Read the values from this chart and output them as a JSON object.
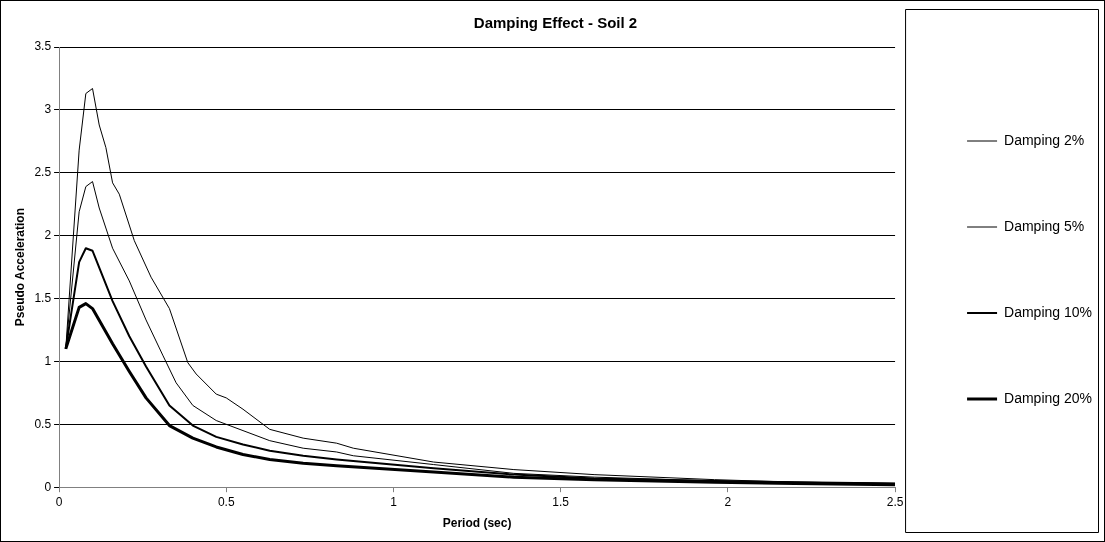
{
  "chart_data": {
    "type": "line",
    "title": "Damping Effect - Soil 2",
    "xlabel": "Period (sec)",
    "ylabel": "Pseudo Acceleration",
    "xlim": [
      0,
      2.5
    ],
    "xticks": [
      0,
      0.5,
      1,
      1.5,
      2,
      2.5
    ],
    "ylim": [
      0,
      3.5
    ],
    "yticks": [
      0,
      0.5,
      1,
      1.5,
      2,
      2.5,
      3,
      3.5
    ],
    "grid": "y",
    "legend": "right",
    "marker": "none",
    "line_style": "solid",
    "series": [
      {
        "name": "Damping 2%",
        "color": "#000000",
        "x": [
          0.02,
          0.06,
          0.08,
          0.1,
          0.12,
          0.14,
          0.16,
          0.18,
          0.225,
          0.275,
          0.33,
          0.385,
          0.41,
          0.47,
          0.5,
          0.55,
          0.63,
          0.73,
          0.83,
          0.88,
          1.12,
          1.36,
          1.6,
          1.96,
          2.2,
          2.5
        ],
        "values": [
          1.1,
          2.68,
          3.13,
          3.17,
          2.88,
          2.7,
          2.42,
          2.33,
          1.96,
          1.67,
          1.42,
          0.99,
          0.9,
          0.74,
          0.71,
          0.62,
          0.46,
          0.39,
          0.35,
          0.31,
          0.2,
          0.14,
          0.1,
          0.06,
          0.04,
          0.03
        ]
      },
      {
        "name": "Damping 5%",
        "color": "#000000",
        "x": [
          0.02,
          0.06,
          0.08,
          0.1,
          0.12,
          0.16,
          0.21,
          0.26,
          0.31,
          0.35,
          0.4,
          0.47,
          0.55,
          0.63,
          0.73,
          0.83,
          0.88,
          1.12,
          1.36,
          1.6,
          1.96,
          2.2,
          2.5
        ],
        "values": [
          1.1,
          2.19,
          2.39,
          2.43,
          2.22,
          1.9,
          1.64,
          1.33,
          1.05,
          0.83,
          0.65,
          0.53,
          0.45,
          0.37,
          0.31,
          0.28,
          0.25,
          0.18,
          0.11,
          0.08,
          0.05,
          0.04,
          0.03
        ]
      },
      {
        "name": "Damping 10%",
        "color": "#000000",
        "x": [
          0.02,
          0.06,
          0.08,
          0.1,
          0.16,
          0.21,
          0.26,
          0.33,
          0.4,
          0.47,
          0.55,
          0.63,
          0.73,
          0.83,
          1.12,
          1.36,
          1.6,
          1.96,
          2.2,
          2.5
        ],
        "values": [
          1.1,
          1.79,
          1.9,
          1.88,
          1.48,
          1.2,
          0.96,
          0.65,
          0.49,
          0.4,
          0.34,
          0.29,
          0.25,
          0.22,
          0.15,
          0.1,
          0.07,
          0.05,
          0.04,
          0.03
        ]
      },
      {
        "name": "Damping 20%",
        "color": "#000000",
        "x": [
          0.02,
          0.06,
          0.08,
          0.1,
          0.16,
          0.21,
          0.26,
          0.33,
          0.4,
          0.47,
          0.55,
          0.63,
          0.73,
          0.83,
          1.12,
          1.36,
          1.6,
          1.96,
          2.2,
          2.5
        ],
        "values": [
          1.1,
          1.43,
          1.46,
          1.42,
          1.14,
          0.92,
          0.71,
          0.49,
          0.39,
          0.32,
          0.26,
          0.22,
          0.19,
          0.17,
          0.12,
          0.08,
          0.06,
          0.04,
          0.03,
          0.02
        ]
      }
    ]
  }
}
